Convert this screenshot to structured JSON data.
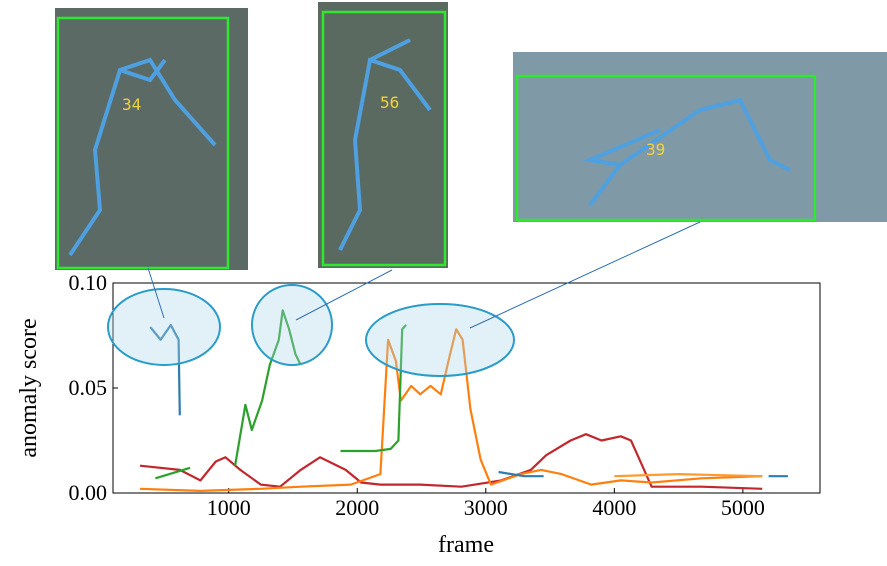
{
  "chart_data": {
    "type": "line",
    "xlabel": "frame",
    "ylabel": "anomaly score",
    "xlim": [
      100,
      5600
    ],
    "ylim": [
      0,
      0.1
    ],
    "xticks": [
      1000,
      2000,
      3000,
      4000,
      5000
    ],
    "yticks": [
      {
        "value": 0,
        "label": "0.00"
      },
      {
        "value": 0.05,
        "label": "0.05"
      },
      {
        "value": 0.1,
        "label": "0.10"
      }
    ],
    "series": [
      {
        "color": "#c1272d",
        "x": [
          310,
          620,
          780,
          900,
          975,
          1090,
          1250,
          1400,
          1560,
          1710,
          1910,
          2030,
          2180,
          2490,
          2810,
          3120,
          3350,
          3470,
          3660,
          3780,
          3900,
          4050,
          4130,
          4290,
          4680,
          5150
        ],
        "values": [
          0.013,
          0.011,
          0.006,
          0.015,
          0.017,
          0.011,
          0.004,
          0.003,
          0.011,
          0.017,
          0.011,
          0.005,
          0.004,
          0.004,
          0.003,
          0.006,
          0.011,
          0.018,
          0.025,
          0.028,
          0.025,
          0.027,
          0.025,
          0.003,
          0.003,
          0.002
        ]
      },
      {
        "color": "#ff7f0e",
        "x": [
          310,
          780,
          1250,
          1560,
          1950,
          2180,
          2240,
          2300,
          2340,
          2420,
          2490,
          2570,
          2650,
          2710,
          2770,
          2820,
          2880,
          2960,
          3040,
          3270,
          3430,
          3590,
          3820,
          4050,
          4290,
          4680,
          5150
        ],
        "values": [
          0.002,
          0.001,
          0.002,
          0.003,
          0.004,
          0.009,
          0.073,
          0.063,
          0.044,
          0.051,
          0.047,
          0.051,
          0.047,
          0.063,
          0.078,
          0.073,
          0.04,
          0.016,
          0.004,
          0.009,
          0.011,
          0.009,
          0.004,
          0.006,
          0.005,
          0.007,
          0.008
        ]
      },
      {
        "color": "#ff9a2e",
        "x": [
          4000,
          4500,
          5150
        ],
        "values": [
          0.008,
          0.009,
          0.008
        ]
      },
      {
        "color": "#2ca02c",
        "x": [
          430,
          700,
          850,
          1050,
          1130,
          1180,
          1260,
          1320,
          1390,
          1420,
          1470,
          1520,
          1560,
          1700,
          1870,
          2140,
          2260,
          2320,
          2350,
          2380
        ],
        "values": [
          0.007,
          0.012,
          null,
          0.013,
          0.042,
          0.03,
          0.044,
          0.061,
          0.073,
          0.087,
          0.078,
          0.066,
          0.061,
          null,
          0.02,
          0.02,
          0.021,
          0.025,
          0.078,
          0.08
        ]
      },
      {
        "color": "#2f7bb0",
        "x": [
          390,
          470,
          550,
          610,
          620,
          2000,
          3100,
          3300,
          3450,
          4000,
          5200,
          5350
        ],
        "values": [
          0.079,
          0.073,
          0.08,
          0.073,
          0.037,
          null,
          0.01,
          0.008,
          0.008,
          null,
          0.008,
          0.008
        ]
      }
    ],
    "annotations": [
      "34",
      "56",
      "39"
    ]
  }
}
